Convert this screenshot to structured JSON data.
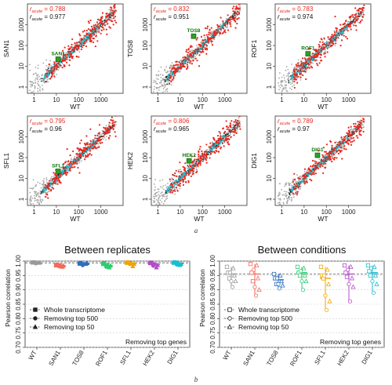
{
  "captions": {
    "a": "a",
    "b": "b"
  },
  "colors": {
    "grey": "#a8a8a8",
    "red": "#e8261c",
    "cyan": "#27b9c9",
    "dark": "#1f2a2a",
    "green": "#2aa02a",
    "WT": "#9a9a9a",
    "SAN1": "#f26b5b",
    "TOS8": "#2f6fbf",
    "ROF1": "#2ecc71",
    "SFL1": "#f0a500",
    "HEK2": "#b24cc7",
    "DIG1": "#19bfd0"
  },
  "chart_data": [
    {
      "type": "scatter",
      "gene": "SAN1",
      "ylabel": "SAN1",
      "xlabel": "WT",
      "x_ticks": [
        "1",
        "10",
        "100",
        "1000"
      ],
      "y_ticks": [
        "1",
        "10",
        "100",
        "1000"
      ],
      "scale": "log",
      "r_red_label": "r",
      "r_red_sub": "acute",
      "r_red": "= 0.788",
      "r_black_label": "r",
      "r_black_sub": "acute",
      "r_black": "= 0.977",
      "highlight": {
        "label": "SAN1",
        "x": 12,
        "y": 22
      }
    },
    {
      "type": "scatter",
      "gene": "TOS8",
      "ylabel": "TOS8",
      "xlabel": "WT",
      "x_ticks": [
        "1",
        "10",
        "100",
        "1000"
      ],
      "y_ticks": [
        "1",
        "10",
        "100",
        "1000"
      ],
      "scale": "log",
      "r_red_label": "r",
      "r_red_sub": "acute",
      "r_red": "= 0.832",
      "r_black_label": "r",
      "r_black_sub": "acute",
      "r_black": "= 0.951",
      "highlight": {
        "label": "TOS8",
        "x": 40,
        "y": 280
      }
    },
    {
      "type": "scatter",
      "gene": "ROF1",
      "ylabel": "ROF1",
      "xlabel": "WT",
      "x_ticks": [
        "1",
        "10",
        "100",
        "1000"
      ],
      "y_ticks": [
        "1",
        "10",
        "100",
        "1000"
      ],
      "scale": "log",
      "r_red_label": "r",
      "r_red_sub": "acute",
      "r_red": "= 0.783",
      "r_black_label": "r",
      "r_black_sub": "acute",
      "r_black": "= 0.974",
      "highlight": {
        "label": "ROF1",
        "x": 15,
        "y": 40
      }
    },
    {
      "type": "scatter",
      "gene": "SFL1",
      "ylabel": "SFL1",
      "xlabel": "WT",
      "x_ticks": [
        "1",
        "10",
        "100",
        "1000"
      ],
      "y_ticks": [
        "1",
        "10",
        "100",
        "1000"
      ],
      "scale": "log",
      "r_red_label": "r",
      "r_red_sub": "acute",
      "r_red": "= 0.795",
      "r_black_label": "r",
      "r_black_sub": "acute",
      "r_black": "= 0.96",
      "highlight": {
        "label": "SFL1",
        "x": 12,
        "y": 22
      }
    },
    {
      "type": "scatter",
      "gene": "HEK2",
      "ylabel": "HEK2",
      "xlabel": "WT",
      "x_ticks": [
        "1",
        "10",
        "100",
        "1000"
      ],
      "y_ticks": [
        "1",
        "10",
        "100",
        "1000"
      ],
      "scale": "log",
      "r_red_label": "r",
      "r_red_sub": "acute",
      "r_red": "= 0.806",
      "r_black_label": "r",
      "r_black_sub": "acute",
      "r_black": "= 0.965",
      "highlight": {
        "label": "HEK2",
        "x": 25,
        "y": 70
      }
    },
    {
      "type": "scatter",
      "gene": "DIG1",
      "ylabel": "DIG1",
      "xlabel": "WT",
      "x_ticks": [
        "1",
        "10",
        "100",
        "1000"
      ],
      "y_ticks": [
        "1",
        "10",
        "100",
        "1000"
      ],
      "scale": "log",
      "r_red_label": "r",
      "r_red_sub": "acute",
      "r_red": "= 0.789",
      "r_black_label": "r",
      "r_black_sub": "acute",
      "r_black": "= 0.97",
      "highlight": {
        "label": "DIG1",
        "x": 40,
        "y": 130
      }
    },
    {
      "type": "dotplot",
      "title": "Between replicates",
      "ylabel": "Pearson correlation",
      "categories": [
        "WT",
        "SAN1",
        "TOS8",
        "ROF1",
        "SFL1",
        "HEK2",
        "DIG1"
      ],
      "ylim": [
        0.7,
        1.0
      ],
      "y_ticks": [
        "0.70",
        "0.75",
        "0.80",
        "0.85",
        "0.90",
        "0.95",
        "1.00"
      ],
      "legend": [
        "Whole transcriptome",
        "Removing top 500",
        "Removing top 50"
      ],
      "legend_title": "Removing top genes",
      "series": [
        {
          "name": "Whole transcriptome",
          "values": [
            [
              0.995,
              0.996
            ],
            [
              0.985,
              0.988
            ],
            [
              0.991,
              0.994
            ],
            [
              0.99,
              0.992
            ],
            [
              0.994,
              0.996
            ],
            [
              0.993,
              0.995
            ],
            [
              0.994,
              0.996
            ]
          ]
        },
        {
          "name": "Removing top 500",
          "values": [
            [
              0.992,
              0.994
            ],
            [
              0.982,
              0.985
            ],
            [
              0.986,
              0.99
            ],
            [
              0.98,
              0.986
            ],
            [
              0.99,
              0.992
            ],
            [
              0.984,
              0.99
            ],
            [
              0.988,
              0.992
            ]
          ]
        },
        {
          "name": "Removing top 50",
          "values": [
            [
              0.994,
              0.995
            ],
            [
              0.98,
              0.984
            ],
            [
              0.99,
              0.993
            ],
            [
              0.978,
              0.984
            ],
            [
              0.982,
              0.99
            ],
            [
              0.978,
              0.986
            ],
            [
              0.986,
              0.99
            ]
          ]
        }
      ],
      "medians": [
        0.994,
        0.984,
        0.99,
        0.985,
        0.992,
        0.988,
        0.991
      ]
    },
    {
      "type": "dotplot",
      "title": "Between conditions",
      "ylabel": "Pearson correlation",
      "categories": [
        "WT",
        "SAN1",
        "TOS8",
        "ROF1",
        "SFL1",
        "HEK2",
        "DIG1"
      ],
      "ylim": [
        0.7,
        1.0
      ],
      "y_ticks": [
        "0.70",
        "0.75",
        "0.80",
        "0.85",
        "0.90",
        "0.95",
        "1.00"
      ],
      "legend": [
        "Whole transcriptome",
        "Removing top 500",
        "Removing top 50"
      ],
      "legend_title": "Removing top genes",
      "series": [
        {
          "name": "Whole transcriptome",
          "values": [
            [
              0.98,
              0.96,
              0.94
            ],
            [
              0.99,
              0.96,
              0.93
            ],
            [
              0.955,
              0.94,
              0.92
            ],
            [
              0.98,
              0.96,
              0.95
            ],
            [
              0.98,
              0.95,
              0.94
            ],
            [
              0.985,
              0.96,
              0.945
            ],
            [
              0.985,
              0.965,
              0.95
            ]
          ]
        },
        {
          "name": "Removing top 500",
          "values": [
            [
              0.96,
              0.93,
              0.91
            ],
            [
              0.97,
              0.91,
              0.88
            ],
            [
              0.94,
              0.92,
              0.905
            ],
            [
              0.965,
              0.93,
              0.9
            ],
            [
              0.95,
              0.88,
              0.83
            ],
            [
              0.97,
              0.92,
              0.86
            ],
            [
              0.975,
              0.93,
              0.89
            ]
          ]
        },
        {
          "name": "Removing top 50",
          "values": [
            [
              0.975,
              0.95,
              0.93
            ],
            [
              0.985,
              0.94,
              0.9
            ],
            [
              0.95,
              0.93,
              0.915
            ],
            [
              0.975,
              0.95,
              0.93
            ],
            [
              0.97,
              0.92,
              0.86
            ],
            [
              0.98,
              0.94,
              0.91
            ],
            [
              0.98,
              0.95,
              0.92
            ]
          ]
        }
      ],
      "medians": [
        0.955,
        0.955,
        0.935,
        0.96,
        0.94,
        0.955,
        0.96
      ]
    }
  ]
}
